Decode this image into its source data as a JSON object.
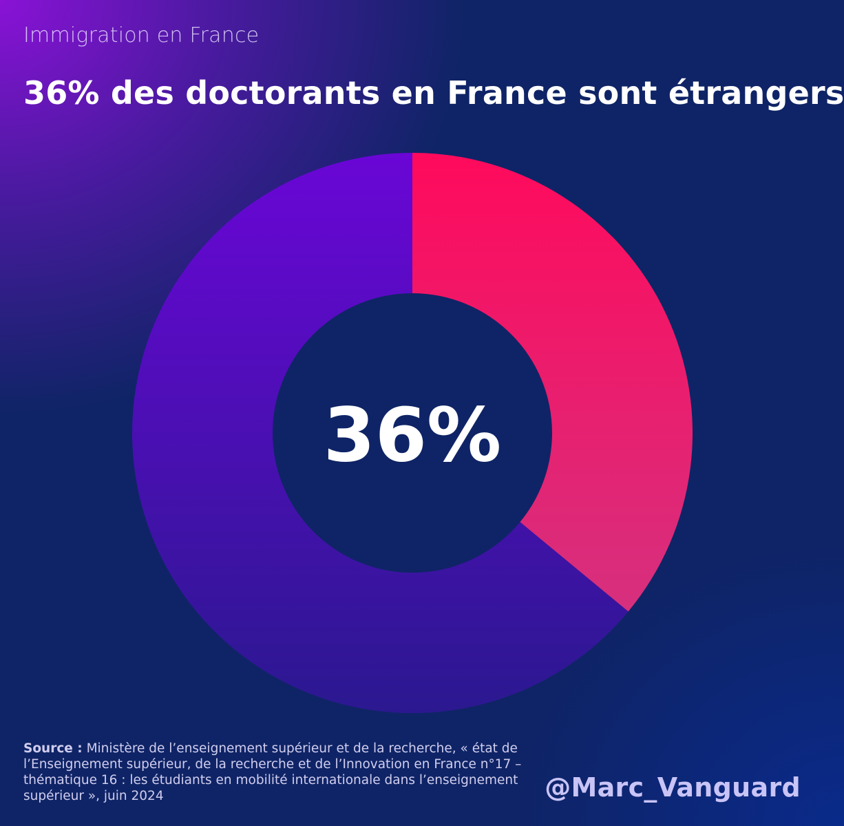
{
  "header": {
    "kicker": "Immigration en France",
    "title": "36% des doctorants en France sont étrangers"
  },
  "chart_data": {
    "type": "pie",
    "variant": "donut",
    "title": "36% des doctorants en France sont étrangers",
    "center_label": "36%",
    "slices": [
      {
        "label": "",
        "value": 36,
        "color": "#ff0a5c"
      },
      {
        "label": "",
        "value": 64,
        "color": "#5a0bd0"
      }
    ],
    "start_angle_deg": 0,
    "direction": "clockwise"
  },
  "footer": {
    "source_label": "Source :",
    "source_text": "Ministère de l’enseignement supérieur et de la recherche, « état de l’Enseignement supérieur, de la recherche et de l’Innovation en France n°17 – thématique 16 : les étudiants en mobilité internationale dans l’enseignement supérieur », juin 2024",
    "handle": "@Marc_Vanguard"
  },
  "colors": {
    "foreign_slice": "#ff0a5c",
    "other_slice": "#5a0bd0",
    "center_fill": "#0f2466",
    "text": "#ffffff",
    "handle": "#c9c4f7"
  }
}
